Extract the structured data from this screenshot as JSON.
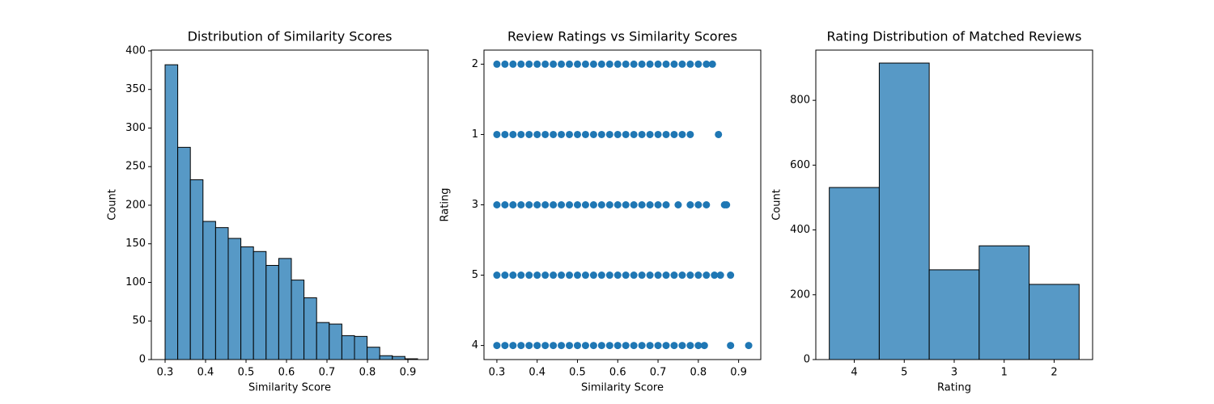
{
  "chart_data": [
    {
      "type": "histogram",
      "title": "Distribution of Similarity Scores",
      "xlabel": "Similarity Score",
      "ylabel": "Count",
      "bins": [
        0.3,
        0.3312,
        0.3624,
        0.3936,
        0.4248,
        0.456,
        0.4872,
        0.5184,
        0.5496,
        0.5808,
        0.612,
        0.6432,
        0.6744,
        0.7056,
        0.7368,
        0.768,
        0.7992,
        0.8304,
        0.8616,
        0.8928,
        0.924
      ],
      "values": [
        382,
        275,
        233,
        179,
        171,
        157,
        146,
        140,
        122,
        131,
        103,
        80,
        48,
        46,
        31,
        30,
        16,
        5,
        4,
        1
      ],
      "color": "#5799c6",
      "xlim": [
        0.266,
        0.95
      ],
      "xticks": [
        0.3,
        0.4,
        0.5,
        0.6,
        0.7,
        0.8,
        0.9
      ],
      "ylim": [
        0,
        401
      ],
      "yticks": [
        0,
        50,
        100,
        150,
        200,
        250,
        300,
        350,
        400
      ]
    },
    {
      "type": "scatter",
      "title": "Review Ratings vs Similarity Scores",
      "xlabel": "Similarity Score",
      "ylabel": "Rating",
      "categories": [
        "4",
        "5",
        "3",
        "1",
        "2"
      ],
      "x": [
        [
          0.3,
          0.32,
          0.34,
          0.36,
          0.38,
          0.4,
          0.42,
          0.44,
          0.46,
          0.48,
          0.5,
          0.52,
          0.54,
          0.56,
          0.58,
          0.6,
          0.62,
          0.64,
          0.66,
          0.68,
          0.7,
          0.72,
          0.74,
          0.76,
          0.78,
          0.8,
          0.815,
          0.88,
          0.925
        ],
        [
          0.3,
          0.32,
          0.34,
          0.36,
          0.38,
          0.4,
          0.42,
          0.44,
          0.46,
          0.48,
          0.5,
          0.52,
          0.54,
          0.56,
          0.58,
          0.6,
          0.62,
          0.64,
          0.66,
          0.68,
          0.7,
          0.72,
          0.74,
          0.76,
          0.78,
          0.8,
          0.82,
          0.84,
          0.855,
          0.88
        ],
        [
          0.3,
          0.32,
          0.34,
          0.36,
          0.38,
          0.4,
          0.42,
          0.44,
          0.46,
          0.48,
          0.5,
          0.52,
          0.54,
          0.56,
          0.58,
          0.6,
          0.62,
          0.64,
          0.66,
          0.68,
          0.7,
          0.72,
          0.75,
          0.78,
          0.8,
          0.82,
          0.865,
          0.87
        ],
        [
          0.3,
          0.32,
          0.34,
          0.36,
          0.38,
          0.4,
          0.42,
          0.44,
          0.46,
          0.48,
          0.5,
          0.52,
          0.54,
          0.56,
          0.58,
          0.6,
          0.62,
          0.64,
          0.66,
          0.68,
          0.7,
          0.72,
          0.74,
          0.76,
          0.78,
          0.85
        ],
        [
          0.3,
          0.32,
          0.34,
          0.36,
          0.38,
          0.4,
          0.42,
          0.44,
          0.46,
          0.48,
          0.5,
          0.52,
          0.54,
          0.56,
          0.58,
          0.6,
          0.62,
          0.64,
          0.66,
          0.68,
          0.7,
          0.72,
          0.74,
          0.76,
          0.78,
          0.8,
          0.82,
          0.835
        ]
      ],
      "color": "#1f77b4",
      "xlim": [
        0.268,
        0.955
      ],
      "xticks": [
        0.3,
        0.4,
        0.5,
        0.6,
        0.7,
        0.8,
        0.9
      ]
    },
    {
      "type": "bar",
      "title": "Rating Distribution of Matched Reviews",
      "xlabel": "Rating",
      "ylabel": "Count",
      "categories": [
        "4",
        "5",
        "3",
        "1",
        "2"
      ],
      "values": [
        531,
        915,
        277,
        351,
        232
      ],
      "color": "#5799c6",
      "ylim": [
        0,
        955
      ],
      "yticks": [
        0,
        200,
        400,
        600,
        800
      ]
    }
  ]
}
